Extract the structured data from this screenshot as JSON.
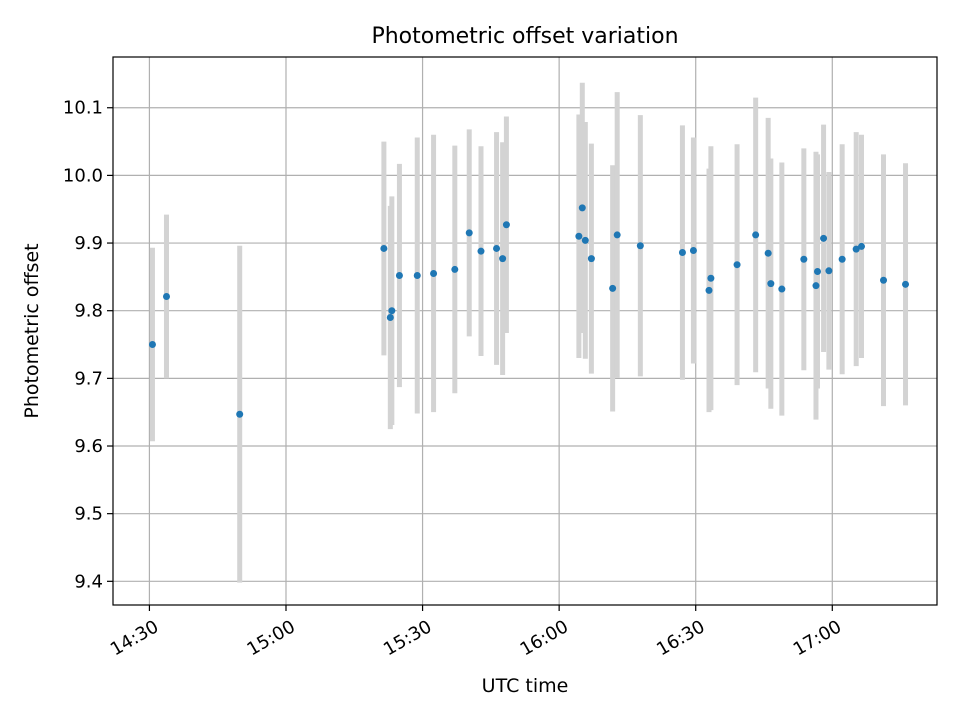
{
  "chart_data": {
    "type": "scatter",
    "title": "Photometric offset variation",
    "xlabel": "UTC time",
    "ylabel": "Photometric offset",
    "x_ticks": [
      "14:30",
      "15:00",
      "15:30",
      "16:00",
      "16:30",
      "17:00"
    ],
    "y_ticks": [
      "9.4",
      "9.5",
      "9.6",
      "9.7",
      "9.8",
      "9.9",
      "10.0",
      "10.1"
    ],
    "xlim": [
      "14:22",
      "17:23"
    ],
    "ylim": [
      9.365,
      10.175
    ],
    "grid": true,
    "marker_color": "#1f77b4",
    "errorbar_color": "#d3d3d3",
    "points": [
      {
        "x": "14:30:40",
        "y": 9.75,
        "err": 0.143
      },
      {
        "x": "14:33:45",
        "y": 9.821,
        "err": 0.121
      },
      {
        "x": "14:49:50",
        "y": 9.647,
        "err": 0.249
      },
      {
        "x": "15:21:30",
        "y": 9.892,
        "err": 0.158
      },
      {
        "x": "15:22:55",
        "y": 9.79,
        "err": 0.165
      },
      {
        "x": "15:23:15",
        "y": 9.8,
        "err": 0.169
      },
      {
        "x": "15:24:55",
        "y": 9.852,
        "err": 0.165
      },
      {
        "x": "15:28:50",
        "y": 9.852,
        "err": 0.204
      },
      {
        "x": "15:32:25",
        "y": 9.855,
        "err": 0.205
      },
      {
        "x": "15:37:05",
        "y": 9.861,
        "err": 0.183
      },
      {
        "x": "15:40:15",
        "y": 9.915,
        "err": 0.153
      },
      {
        "x": "15:42:50",
        "y": 9.888,
        "err": 0.155
      },
      {
        "x": "15:46:15",
        "y": 9.892,
        "err": 0.172
      },
      {
        "x": "15:47:35",
        "y": 9.877,
        "err": 0.172
      },
      {
        "x": "15:48:25",
        "y": 9.927,
        "err": 0.16
      },
      {
        "x": "16:04:20",
        "y": 9.91,
        "err": 0.18
      },
      {
        "x": "16:05:05",
        "y": 9.952,
        "err": 0.185
      },
      {
        "x": "16:05:45",
        "y": 9.904,
        "err": 0.175
      },
      {
        "x": "16:07:05",
        "y": 9.877,
        "err": 0.17
      },
      {
        "x": "16:11:45",
        "y": 9.833,
        "err": 0.182
      },
      {
        "x": "16:12:45",
        "y": 9.912,
        "err": 0.211
      },
      {
        "x": "16:17:50",
        "y": 9.896,
        "err": 0.193
      },
      {
        "x": "16:27:05",
        "y": 9.886,
        "err": 0.188
      },
      {
        "x": "16:29:30",
        "y": 9.889,
        "err": 0.167
      },
      {
        "x": "16:32:55",
        "y": 9.83,
        "err": 0.18
      },
      {
        "x": "16:33:20",
        "y": 9.848,
        "err": 0.195
      },
      {
        "x": "16:39:05",
        "y": 9.868,
        "err": 0.178
      },
      {
        "x": "16:43:10",
        "y": 9.912,
        "err": 0.203
      },
      {
        "x": "16:45:55",
        "y": 9.885,
        "err": 0.2
      },
      {
        "x": "16:46:30",
        "y": 9.84,
        "err": 0.185
      },
      {
        "x": "16:48:55",
        "y": 9.832,
        "err": 0.187
      },
      {
        "x": "16:53:45",
        "y": 9.876,
        "err": 0.164
      },
      {
        "x": "16:56:25",
        "y": 9.837,
        "err": 0.198
      },
      {
        "x": "16:56:45",
        "y": 9.858,
        "err": 0.173
      },
      {
        "x": "16:58:05",
        "y": 9.907,
        "err": 0.168
      },
      {
        "x": "16:59:15",
        "y": 9.859,
        "err": 0.146
      },
      {
        "x": "17:02:10",
        "y": 9.876,
        "err": 0.17
      },
      {
        "x": "17:05:15",
        "y": 9.891,
        "err": 0.173
      },
      {
        "x": "17:06:25",
        "y": 9.895,
        "err": 0.165
      },
      {
        "x": "17:11:15",
        "y": 9.845,
        "err": 0.186
      },
      {
        "x": "17:16:05",
        "y": 9.839,
        "err": 0.179
      }
    ]
  }
}
